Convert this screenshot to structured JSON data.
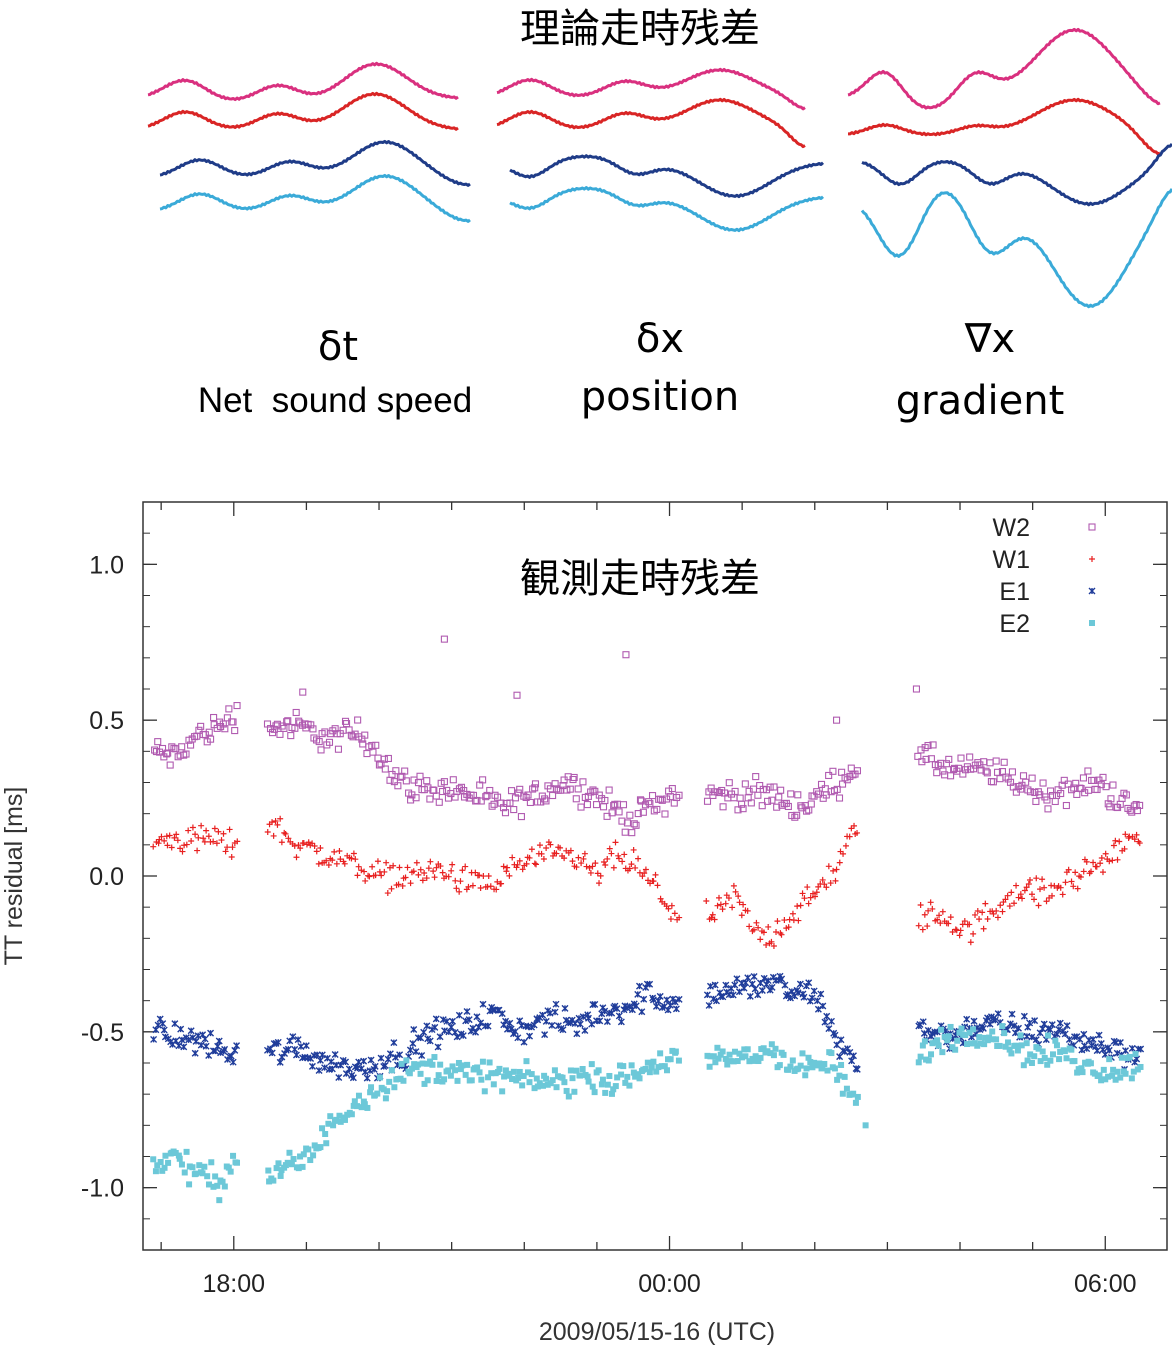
{
  "top_figure": {
    "title": "理論走時残差",
    "panels": [
      {
        "symbol": "δt",
        "caption": "Net  sound speed"
      },
      {
        "symbol": "δx",
        "caption": "position"
      },
      {
        "symbol": "∇x",
        "caption": "gradient"
      }
    ],
    "trace_colors": [
      "#d9307f",
      "#d92525",
      "#1f3c88",
      "#3aaad8"
    ]
  },
  "chart_data": {
    "type": "scatter",
    "title": "観測走時残差",
    "xlabel": "2009/05/15-16 (UTC)",
    "ylabel": "TT residual [ms]",
    "xlim": [
      16.75,
      30.85
    ],
    "ylim": [
      -1.2,
      1.2
    ],
    "x_unit": "hours since 2009-05-15 00:00 UTC",
    "x_ticks": [
      {
        "value": 18,
        "label": "18:00"
      },
      {
        "value": 24,
        "label": "00:00"
      },
      {
        "value": 30,
        "label": "06:00"
      }
    ],
    "y_ticks": [
      {
        "value": 1.0,
        "label": "1.0"
      },
      {
        "value": 0.5,
        "label": "0.5"
      },
      {
        "value": 0.0,
        "label": "0.0"
      },
      {
        "value": -0.5,
        "label": "-0.5"
      },
      {
        "value": -1.0,
        "label": "-1.0"
      }
    ],
    "legend_position": "top-right",
    "data_gaps_hours": [
      [
        18.05,
        18.45
      ],
      [
        24.15,
        24.5
      ],
      [
        26.6,
        27.4
      ]
    ],
    "series": [
      {
        "name": "W2",
        "marker": "open-square",
        "color": "#b05ab0",
        "points": [
          [
            16.9,
            0.4
          ],
          [
            17.2,
            0.38
          ],
          [
            17.5,
            0.45
          ],
          [
            17.8,
            0.48
          ],
          [
            18.0,
            0.52
          ],
          [
            18.5,
            0.48
          ],
          [
            18.9,
            0.48
          ],
          [
            19.3,
            0.44
          ],
          [
            19.7,
            0.46
          ],
          [
            20.0,
            0.4
          ],
          [
            20.2,
            0.32
          ],
          [
            20.5,
            0.28
          ],
          [
            20.9,
            0.28
          ],
          [
            21.3,
            0.26
          ],
          [
            21.7,
            0.22
          ],
          [
            22.1,
            0.25
          ],
          [
            22.5,
            0.3
          ],
          [
            22.8,
            0.28
          ],
          [
            23.2,
            0.22
          ],
          [
            23.5,
            0.18
          ],
          [
            23.7,
            0.22
          ],
          [
            24.0,
            0.26
          ],
          [
            24.6,
            0.26
          ],
          [
            25.0,
            0.26
          ],
          [
            25.4,
            0.26
          ],
          [
            25.8,
            0.22
          ],
          [
            26.2,
            0.28
          ],
          [
            26.6,
            0.36
          ],
          [
            27.5,
            0.38
          ],
          [
            27.9,
            0.34
          ],
          [
            28.4,
            0.34
          ],
          [
            28.8,
            0.3
          ],
          [
            29.2,
            0.26
          ],
          [
            29.6,
            0.28
          ],
          [
            29.9,
            0.3
          ],
          [
            30.2,
            0.24
          ],
          [
            30.5,
            0.2
          ]
        ],
        "outliers": [
          [
            20.9,
            0.76
          ],
          [
            21.9,
            0.58
          ],
          [
            23.4,
            0.71
          ],
          [
            26.3,
            0.5
          ],
          [
            27.4,
            0.6
          ],
          [
            18.95,
            0.59
          ]
        ]
      },
      {
        "name": "W1",
        "marker": "plus",
        "color": "#e82020",
        "points": [
          [
            16.9,
            0.11
          ],
          [
            17.3,
            0.12
          ],
          [
            17.7,
            0.12
          ],
          [
            18.0,
            0.1
          ],
          [
            18.5,
            0.17
          ],
          [
            18.9,
            0.1
          ],
          [
            19.3,
            0.06
          ],
          [
            19.7,
            0.04
          ],
          [
            20.0,
            0.0
          ],
          [
            20.4,
            0.0
          ],
          [
            20.8,
            0.02
          ],
          [
            21.2,
            -0.02
          ],
          [
            21.6,
            -0.03
          ],
          [
            21.9,
            0.04
          ],
          [
            22.3,
            0.06
          ],
          [
            22.7,
            0.06
          ],
          [
            23.0,
            0.0
          ],
          [
            23.2,
            0.06
          ],
          [
            23.5,
            0.04
          ],
          [
            23.8,
            -0.04
          ],
          [
            24.1,
            -0.12
          ],
          [
            24.6,
            -0.14
          ],
          [
            24.9,
            -0.06
          ],
          [
            25.1,
            -0.16
          ],
          [
            25.4,
            -0.2
          ],
          [
            25.7,
            -0.12
          ],
          [
            26.0,
            -0.06
          ],
          [
            26.3,
            0.02
          ],
          [
            26.6,
            0.18
          ],
          [
            27.4,
            -0.14
          ],
          [
            27.7,
            -0.12
          ],
          [
            28.1,
            -0.18
          ],
          [
            28.4,
            -0.12
          ],
          [
            28.8,
            -0.04
          ],
          [
            29.2,
            -0.06
          ],
          [
            29.6,
            0.0
          ],
          [
            29.9,
            0.04
          ],
          [
            30.2,
            0.08
          ],
          [
            30.5,
            0.16
          ]
        ]
      },
      {
        "name": "E1",
        "marker": "cross",
        "color": "#1f3c9a",
        "points": [
          [
            16.9,
            -0.5
          ],
          [
            17.3,
            -0.52
          ],
          [
            17.7,
            -0.54
          ],
          [
            18.0,
            -0.58
          ],
          [
            18.5,
            -0.56
          ],
          [
            18.9,
            -0.55
          ],
          [
            19.3,
            -0.6
          ],
          [
            19.7,
            -0.62
          ],
          [
            20.0,
            -0.6
          ],
          [
            20.4,
            -0.56
          ],
          [
            20.8,
            -0.5
          ],
          [
            21.2,
            -0.48
          ],
          [
            21.6,
            -0.44
          ],
          [
            21.9,
            -0.5
          ],
          [
            22.3,
            -0.46
          ],
          [
            22.7,
            -0.48
          ],
          [
            23.0,
            -0.44
          ],
          [
            23.4,
            -0.42
          ],
          [
            23.7,
            -0.38
          ],
          [
            24.0,
            -0.4
          ],
          [
            24.6,
            -0.38
          ],
          [
            25.0,
            -0.36
          ],
          [
            25.4,
            -0.34
          ],
          [
            25.7,
            -0.38
          ],
          [
            26.0,
            -0.38
          ],
          [
            26.3,
            -0.52
          ],
          [
            26.6,
            -0.62
          ],
          [
            27.4,
            -0.48
          ],
          [
            27.8,
            -0.52
          ],
          [
            28.2,
            -0.48
          ],
          [
            28.6,
            -0.48
          ],
          [
            29.0,
            -0.5
          ],
          [
            29.4,
            -0.5
          ],
          [
            29.8,
            -0.54
          ],
          [
            30.2,
            -0.56
          ],
          [
            30.5,
            -0.58
          ]
        ]
      },
      {
        "name": "E2",
        "marker": "filled-square",
        "color": "#6cc8d8",
        "points": [
          [
            16.9,
            -0.92
          ],
          [
            17.2,
            -0.9
          ],
          [
            17.5,
            -0.96
          ],
          [
            17.8,
            -0.98
          ],
          [
            18.0,
            -0.92
          ],
          [
            18.5,
            -0.96
          ],
          [
            18.9,
            -0.92
          ],
          [
            19.2,
            -0.86
          ],
          [
            19.4,
            -0.78
          ],
          [
            19.7,
            -0.72
          ],
          [
            20.1,
            -0.66
          ],
          [
            20.5,
            -0.62
          ],
          [
            20.9,
            -0.62
          ],
          [
            21.3,
            -0.64
          ],
          [
            21.7,
            -0.64
          ],
          [
            22.1,
            -0.66
          ],
          [
            22.5,
            -0.66
          ],
          [
            22.9,
            -0.64
          ],
          [
            23.3,
            -0.66
          ],
          [
            23.7,
            -0.62
          ],
          [
            24.0,
            -0.58
          ],
          [
            24.6,
            -0.6
          ],
          [
            25.0,
            -0.58
          ],
          [
            25.4,
            -0.56
          ],
          [
            25.8,
            -0.62
          ],
          [
            26.2,
            -0.6
          ],
          [
            26.6,
            -0.74
          ],
          [
            27.4,
            -0.58
          ],
          [
            27.8,
            -0.52
          ],
          [
            28.2,
            -0.5
          ],
          [
            28.6,
            -0.52
          ],
          [
            29.0,
            -0.58
          ],
          [
            29.4,
            -0.56
          ],
          [
            29.8,
            -0.62
          ],
          [
            30.2,
            -0.62
          ],
          [
            30.5,
            -0.6
          ]
        ],
        "outliers": [
          [
            26.7,
            -0.8
          ]
        ]
      }
    ]
  }
}
